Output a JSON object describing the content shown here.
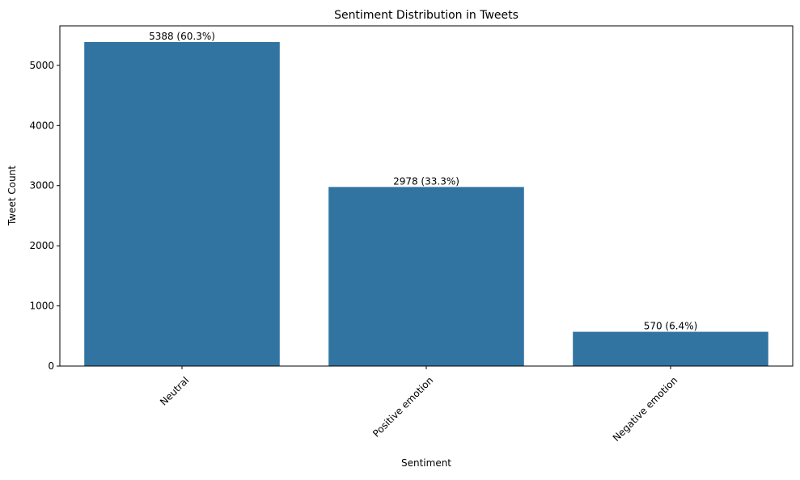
{
  "chart_data": {
    "type": "bar",
    "title": "Sentiment Distribution in Tweets",
    "xlabel": "Sentiment",
    "ylabel": "Tweet Count",
    "categories": [
      "Neutral",
      "Positive emotion",
      "Negative emotion"
    ],
    "values": [
      5388,
      2978,
      570
    ],
    "data_labels": [
      "5388 (60.3%)",
      "2978 (33.3%)",
      "570 (6.4%)"
    ],
    "ylim": [
      0,
      5657
    ],
    "yticks": [
      0,
      1000,
      2000,
      3000,
      4000,
      5000
    ],
    "ytick_labels": [
      "0",
      "1000",
      "2000",
      "3000",
      "4000",
      "5000"
    ],
    "xtick_rotation": 45,
    "grid": false,
    "legend": "none",
    "bar_color": "#3274a1"
  }
}
